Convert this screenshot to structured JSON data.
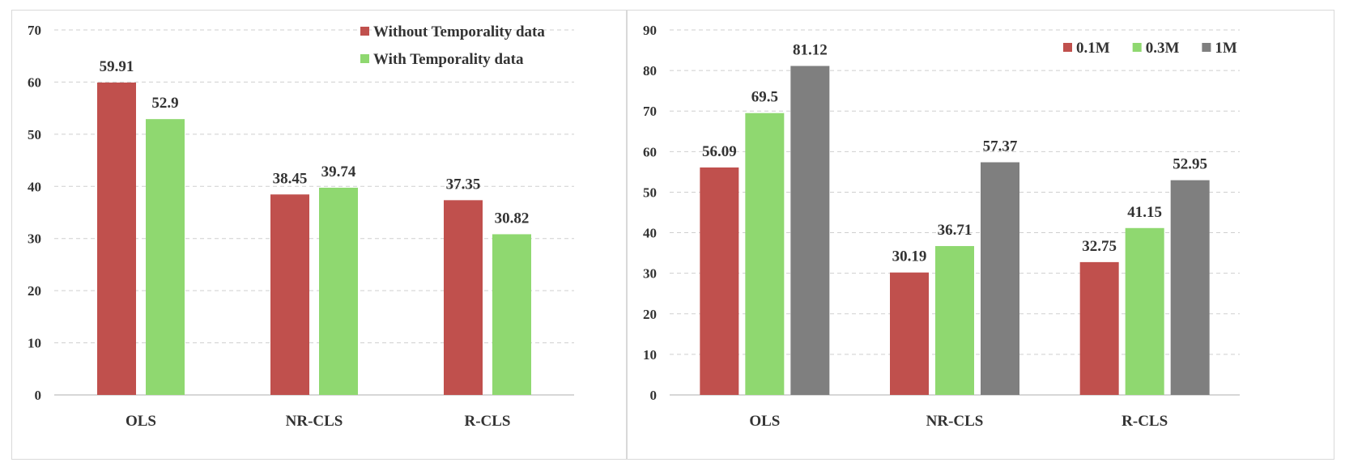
{
  "chart_data": [
    {
      "type": "bar",
      "title": "",
      "xlabel": "",
      "ylabel": "",
      "ylim": [
        0,
        70
      ],
      "yticks": [
        0,
        10,
        20,
        30,
        40,
        50,
        60,
        70
      ],
      "categories": [
        "OLS",
        "NR-CLS",
        "R-CLS"
      ],
      "legend_position": "top-right",
      "legend_layout": "vertical",
      "series": [
        {
          "name": "Without Temporality data",
          "color": "#c0504d",
          "values": [
            59.91,
            38.45,
            37.35
          ],
          "labels": [
            "59.91",
            "38.45",
            "37.35"
          ]
        },
        {
          "name": "With Temporality data",
          "color": "#8fd870",
          "values": [
            52.9,
            39.74,
            30.82
          ],
          "labels": [
            "52.9",
            "39.74",
            "30.82"
          ]
        }
      ]
    },
    {
      "type": "bar",
      "title": "",
      "xlabel": "",
      "ylabel": "",
      "ylim": [
        0,
        90
      ],
      "yticks": [
        0,
        10,
        20,
        30,
        40,
        50,
        60,
        70,
        80,
        90
      ],
      "categories": [
        "OLS",
        "NR-CLS",
        "R-CLS"
      ],
      "legend_position": "top-right",
      "legend_layout": "horizontal",
      "series": [
        {
          "name": "0.1M",
          "color": "#c0504d",
          "values": [
            56.09,
            30.19,
            32.75
          ],
          "labels": [
            "56.09",
            "30.19",
            "32.75"
          ]
        },
        {
          "name": "0.3M",
          "color": "#8fd870",
          "values": [
            69.5,
            36.71,
            41.15
          ],
          "labels": [
            "69.5",
            "36.71",
            "41.15"
          ]
        },
        {
          "name": "1M",
          "color": "#7f7f7f",
          "values": [
            81.12,
            57.37,
            52.95
          ],
          "labels": [
            "81.12",
            "57.37",
            "52.95"
          ]
        }
      ]
    }
  ]
}
